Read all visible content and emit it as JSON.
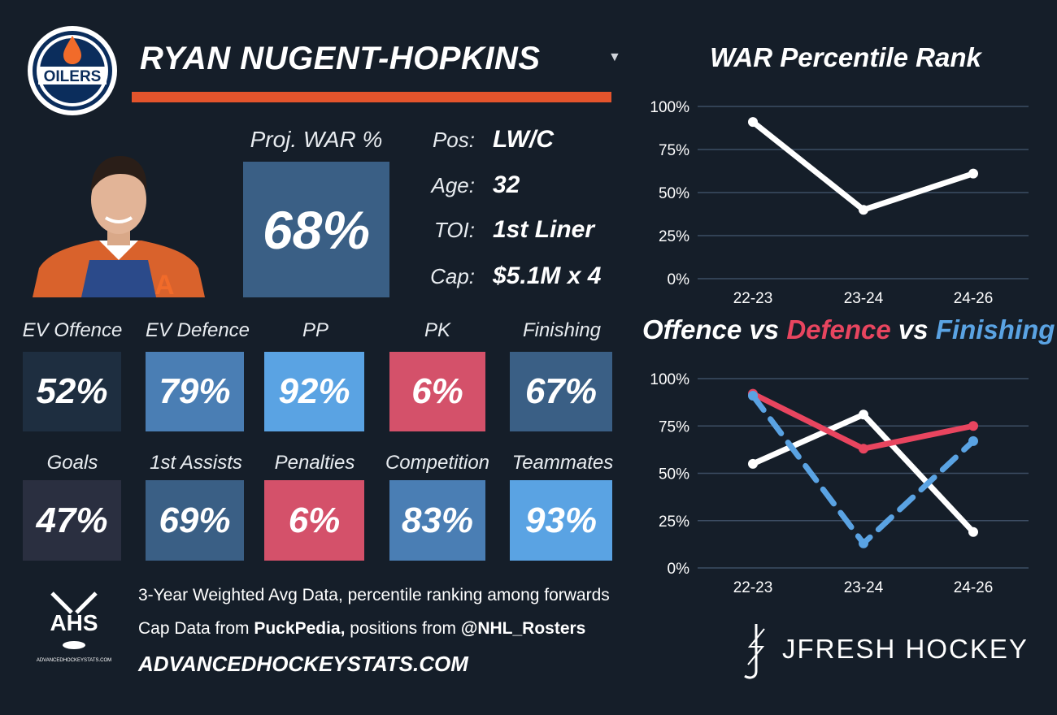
{
  "team": {
    "logo_text": "OILERS"
  },
  "player": {
    "name": "RYAN NUGENT-HOPKINS",
    "jersey_letter": "A"
  },
  "proj_war": {
    "label": "Proj. WAR %",
    "value": "68%"
  },
  "info": [
    {
      "label": "Pos:",
      "value": "LW/C"
    },
    {
      "label": "Age:",
      "value": "32"
    },
    {
      "label": "TOI:",
      "value": "1st Liner"
    },
    {
      "label": "Cap:",
      "value": "$5.1M x 4"
    }
  ],
  "stats": [
    {
      "label": "EV Offence",
      "value": "52%",
      "color": "#1e2e40"
    },
    {
      "label": "EV Defence",
      "value": "79%",
      "color": "#4a7eb4"
    },
    {
      "label": "PP",
      "value": "92%",
      "color": "#5aa3e3"
    },
    {
      "label": "PK",
      "value": "6%",
      "color": "#d4516a"
    },
    {
      "label": "Finishing",
      "value": "67%",
      "color": "#3a5f85"
    },
    {
      "label": "Goals",
      "value": "47%",
      "color": "#2a2f40"
    },
    {
      "label": "1st Assists",
      "value": "69%",
      "color": "#3a5f85"
    },
    {
      "label": "Penalties",
      "value": "6%",
      "color": "#d4516a"
    },
    {
      "label": "Competition",
      "value": "83%",
      "color": "#4a7eb4"
    },
    {
      "label": "Teammates",
      "value": "93%",
      "color": "#5aa3e3"
    }
  ],
  "footer": {
    "ahs_logo_text": "AHS",
    "ahs_logo_sub": "ADVANCEDHOCKEYSTATS.COM",
    "line1": "3-Year Weighted Avg Data, percentile ranking among forwards",
    "line2_prefix": "Cap Data from ",
    "line2_source1": "PuckPedia,",
    "line2_mid": " positions from ",
    "line2_source2": "@NHL_Rosters",
    "website": "ADVANCEDHOCKEYSTATS.COM",
    "brand": "JFRESH HOCKEY"
  },
  "chart_data": [
    {
      "type": "line",
      "title": "WAR Percentile Rank",
      "categories": [
        "22-23",
        "23-24",
        "24-26"
      ],
      "series": [
        {
          "values": [
            91,
            40,
            61
          ],
          "color": "#ffffff",
          "style": "solid"
        }
      ],
      "ylim": [
        0,
        100
      ],
      "yticks": [
        "0%",
        "25%",
        "50%",
        "75%",
        "100%"
      ],
      "grid": true
    },
    {
      "type": "line",
      "title": "Offence vs Defence vs Finishing",
      "title_parts": [
        {
          "text": "Offence",
          "color": "#ffffff"
        },
        {
          "text": " vs ",
          "color": "#ffffff"
        },
        {
          "text": "Defence",
          "color": "#e8455f"
        },
        {
          "text": " vs ",
          "color": "#ffffff"
        },
        {
          "text": "Finishing",
          "color": "#5aa3e3"
        }
      ],
      "categories": [
        "22-23",
        "23-24",
        "24-26"
      ],
      "series": [
        {
          "name": "Offence",
          "values": [
            55,
            81,
            19
          ],
          "color": "#ffffff",
          "style": "solid"
        },
        {
          "name": "Defence",
          "values": [
            92,
            63,
            75
          ],
          "color": "#e8455f",
          "style": "solid"
        },
        {
          "name": "Finishing",
          "values": [
            91,
            13,
            67
          ],
          "color": "#5aa3e3",
          "style": "dashed"
        }
      ],
      "ylim": [
        0,
        100
      ],
      "yticks": [
        "0%",
        "25%",
        "50%",
        "75%",
        "100%"
      ],
      "grid": true
    }
  ]
}
